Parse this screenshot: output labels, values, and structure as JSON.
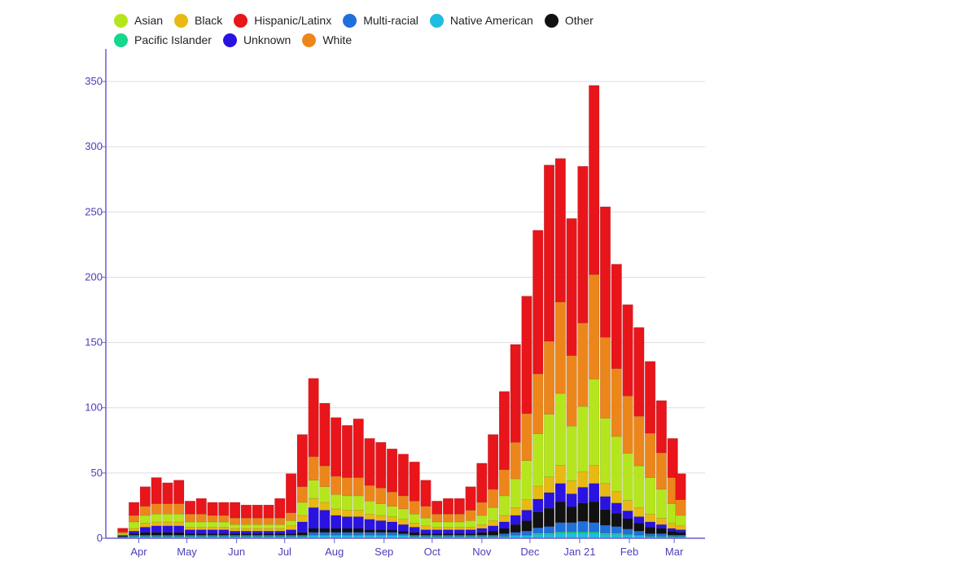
{
  "chart_data": {
    "type": "bar",
    "stacked": true,
    "title": "",
    "xlabel": "",
    "ylabel": "",
    "ylim": [
      0,
      375
    ],
    "yticks": [
      0,
      50,
      100,
      150,
      200,
      250,
      300,
      350
    ],
    "grid": true,
    "legend_position": "top-left",
    "x_tick_labels": [
      {
        "label": "Apr",
        "date": "2020-04-01"
      },
      {
        "label": "May",
        "date": "2020-05-01"
      },
      {
        "label": "Jun",
        "date": "2020-06-01"
      },
      {
        "label": "Jul",
        "date": "2020-07-01"
      },
      {
        "label": "Aug",
        "date": "2020-08-01"
      },
      {
        "label": "Sep",
        "date": "2020-09-01"
      },
      {
        "label": "Oct",
        "date": "2020-10-01"
      },
      {
        "label": "Nov",
        "date": "2020-11-01"
      },
      {
        "label": "Dec",
        "date": "2020-12-01"
      },
      {
        "label": "Jan 21",
        "date": "2021-01-01"
      },
      {
        "label": "Feb",
        "date": "2021-02-01"
      },
      {
        "label": "Mar",
        "date": "2021-03-01"
      }
    ],
    "x_range": [
      "2020-03-15",
      "2021-03-05"
    ],
    "x_sample_interval_days": 7,
    "stack_order": [
      "Native American",
      "Pacific Islander",
      "Multi-racial",
      "Other",
      "Unknown",
      "Black",
      "Asian",
      "White",
      "Hispanic/Latinx"
    ],
    "legend": [
      {
        "name": "Asian",
        "color": "#b5e61d"
      },
      {
        "name": "Black",
        "color": "#e8b913"
      },
      {
        "name": "Hispanic/Latinx",
        "color": "#e8151b"
      },
      {
        "name": "Multi-racial",
        "color": "#1f6fdc"
      },
      {
        "name": "Native American",
        "color": "#1fbde0"
      },
      {
        "name": "Other",
        "color": "#111111"
      },
      {
        "name": "Pacific Islander",
        "color": "#17d68e"
      },
      {
        "name": "Unknown",
        "color": "#2a13e0"
      },
      {
        "name": "White",
        "color": "#ec861b"
      }
    ],
    "x": [
      "2020-03-15",
      "2020-03-22",
      "2020-03-29",
      "2020-04-05",
      "2020-04-12",
      "2020-04-19",
      "2020-04-26",
      "2020-05-03",
      "2020-05-10",
      "2020-05-17",
      "2020-05-24",
      "2020-05-31",
      "2020-06-07",
      "2020-06-14",
      "2020-06-21",
      "2020-06-28",
      "2020-07-05",
      "2020-07-12",
      "2020-07-19",
      "2020-07-26",
      "2020-08-02",
      "2020-08-09",
      "2020-08-16",
      "2020-08-23",
      "2020-08-30",
      "2020-09-06",
      "2020-09-13",
      "2020-09-20",
      "2020-09-27",
      "2020-10-04",
      "2020-10-11",
      "2020-10-18",
      "2020-10-25",
      "2020-11-01",
      "2020-11-08",
      "2020-11-15",
      "2020-11-22",
      "2020-11-29",
      "2020-12-06",
      "2020-12-13",
      "2020-12-20",
      "2020-12-27",
      "2021-01-03",
      "2021-01-10",
      "2021-01-17",
      "2021-01-24",
      "2021-01-31",
      "2021-02-07",
      "2021-02-14",
      "2021-02-21",
      "2021-02-28",
      "2021-03-05"
    ],
    "series": [
      {
        "name": "Native American",
        "values": [
          0,
          0.5,
          1,
          1,
          1,
          1,
          1,
          1,
          1,
          1,
          1,
          1,
          1,
          1,
          1,
          1,
          1,
          1,
          2,
          2,
          2,
          2,
          2,
          2,
          2,
          2,
          2,
          1,
          1,
          1,
          1,
          1,
          1,
          1,
          1,
          1,
          2,
          2,
          3,
          3,
          4,
          4,
          4,
          4,
          3,
          3,
          2,
          2,
          1,
          1,
          1,
          1
        ]
      },
      {
        "name": "Pacific Islander",
        "values": [
          0,
          0.2,
          0.5,
          0.5,
          0.5,
          0.5,
          0.5,
          0.5,
          0.5,
          0.5,
          0.5,
          0.5,
          0.5,
          0.5,
          0.5,
          0.5,
          0.5,
          0.5,
          0.5,
          0.5,
          0.5,
          0.5,
          0.5,
          0.5,
          0.5,
          0.5,
          0.5,
          0.5,
          0.5,
          0.5,
          0.5,
          0.5,
          0.5,
          0.5,
          0.5,
          0.5,
          0.5,
          0.5,
          1,
          1,
          1,
          1,
          1,
          1,
          1,
          1,
          1,
          0.5,
          0.5,
          0.5,
          0.5,
          0.5
        ]
      },
      {
        "name": "Multi-racial",
        "values": [
          0,
          0.5,
          1,
          1,
          1,
          1,
          1,
          1,
          1,
          1,
          1,
          1,
          1,
          1,
          1,
          1,
          1,
          1,
          2,
          2,
          2,
          2,
          2,
          2,
          2,
          2,
          1,
          1,
          1,
          1,
          1,
          1,
          1,
          1,
          1,
          2,
          2,
          3,
          4,
          5,
          7,
          7,
          8,
          7,
          6,
          5,
          4,
          3,
          2,
          2,
          1,
          1
        ]
      },
      {
        "name": "Other",
        "values": [
          0,
          0.5,
          1,
          2,
          2,
          2,
          2,
          1,
          1,
          1,
          1,
          1,
          1,
          1,
          1,
          1,
          1,
          2,
          3,
          3,
          3,
          3,
          3,
          2,
          2,
          2,
          2,
          2,
          1,
          1,
          1,
          1,
          1,
          2,
          3,
          4,
          6,
          8,
          12,
          14,
          16,
          12,
          14,
          16,
          12,
          10,
          8,
          6,
          5,
          4,
          3,
          2
        ]
      },
      {
        "name": "Unknown",
        "values": [
          0,
          0.5,
          2,
          4,
          5,
          5,
          5,
          3,
          3,
          3,
          3,
          2,
          2,
          2,
          2,
          2,
          3,
          8,
          16,
          14,
          10,
          9,
          9,
          8,
          7,
          6,
          5,
          4,
          3,
          3,
          3,
          3,
          3,
          3,
          4,
          5,
          7,
          8,
          10,
          12,
          14,
          10,
          12,
          14,
          10,
          8,
          6,
          5,
          4,
          3,
          2,
          2
        ]
      },
      {
        "name": "Black",
        "values": [
          0,
          0.5,
          2,
          3,
          3,
          3,
          3,
          2,
          2,
          2,
          2,
          2,
          2,
          2,
          2,
          2,
          3,
          5,
          7,
          6,
          5,
          5,
          5,
          4,
          4,
          4,
          4,
          3,
          3,
          2,
          2,
          2,
          2,
          3,
          4,
          5,
          6,
          8,
          10,
          12,
          14,
          10,
          12,
          14,
          10,
          9,
          8,
          7,
          6,
          5,
          4,
          3
        ]
      },
      {
        "name": "Asian",
        "values": [
          0,
          1,
          5,
          6,
          6,
          6,
          6,
          4,
          4,
          4,
          4,
          3,
          3,
          3,
          3,
          3,
          4,
          10,
          14,
          12,
          11,
          11,
          11,
          10,
          9,
          8,
          8,
          7,
          6,
          4,
          4,
          4,
          5,
          7,
          10,
          15,
          22,
          30,
          40,
          48,
          55,
          42,
          50,
          66,
          50,
          42,
          36,
          32,
          28,
          22,
          15,
          8
        ]
      },
      {
        "name": "White",
        "values": [
          0,
          1,
          5,
          7,
          8,
          8,
          8,
          6,
          6,
          5,
          5,
          5,
          5,
          5,
          5,
          5,
          6,
          12,
          18,
          16,
          14,
          14,
          14,
          12,
          12,
          11,
          10,
          10,
          9,
          6,
          6,
          6,
          8,
          10,
          14,
          20,
          28,
          36,
          46,
          56,
          70,
          54,
          64,
          80,
          62,
          52,
          44,
          38,
          34,
          28,
          20,
          12
        ]
      },
      {
        "name": "Hispanic/Latinx",
        "values": [
          0,
          3,
          10,
          15,
          20,
          16,
          18,
          10,
          12,
          10,
          10,
          12,
          10,
          10,
          10,
          15,
          30,
          40,
          60,
          48,
          45,
          40,
          45,
          36,
          35,
          33,
          32,
          30,
          20,
          10,
          12,
          12,
          18,
          30,
          42,
          60,
          75,
          90,
          110,
          135,
          110,
          105,
          120,
          145,
          100,
          80,
          70,
          68,
          55,
          40,
          30,
          20
        ]
      }
    ]
  }
}
